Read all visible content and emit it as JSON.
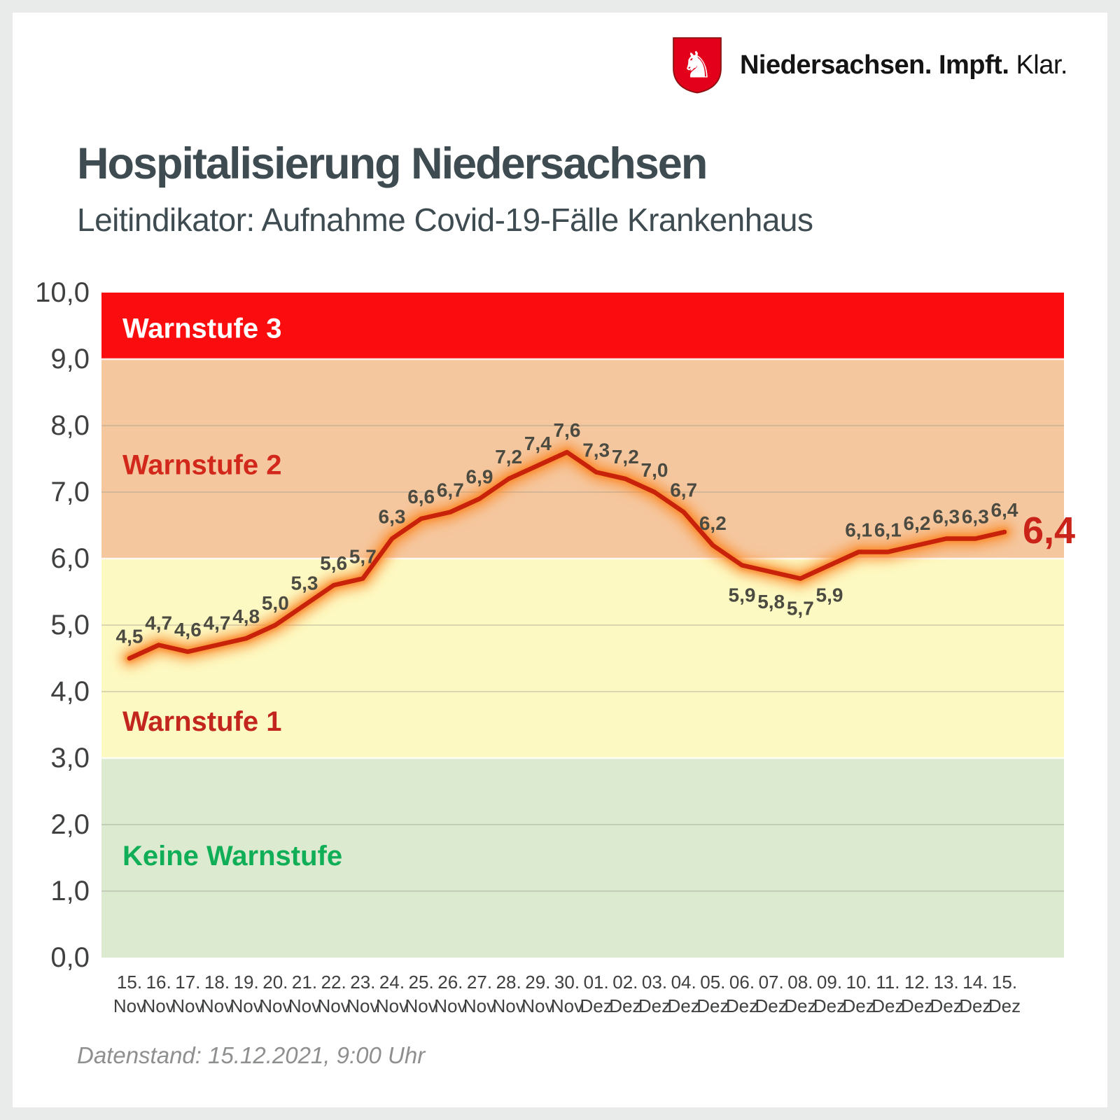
{
  "logo": {
    "icon": "niedersachsen-horse-shield-icon",
    "brand_bold": "Niedersachsen. Impft.",
    "brand_regular": "Klar."
  },
  "header": {
    "title": "Hospitalisierung Niedersachsen",
    "subtitle": "Leitindikator: Aufnahme Covid-19-Fälle Krankenhaus"
  },
  "footer": {
    "datenstand": "Datenstand: 15.12.2021, 9:00 Uhr"
  },
  "chart_data": {
    "type": "line",
    "title": "Hospitalisierung Niedersachsen",
    "subtitle": "Leitindikator: Aufnahme Covid-19-Fälle Krankenhaus",
    "ylim": [
      0,
      10
    ],
    "ytick_labels": [
      "0,0",
      "1,0",
      "2,0",
      "3,0",
      "4,0",
      "5,0",
      "6,0",
      "7,0",
      "8,0",
      "9,0",
      "10,0"
    ],
    "gridline_values": [
      1,
      2,
      4,
      5,
      7,
      8
    ],
    "categories": [
      {
        "day": "15.",
        "month": "Nov"
      },
      {
        "day": "16.",
        "month": "Nov"
      },
      {
        "day": "17.",
        "month": "Nov"
      },
      {
        "day": "18.",
        "month": "Nov"
      },
      {
        "day": "19.",
        "month": "Nov"
      },
      {
        "day": "20.",
        "month": "Nov"
      },
      {
        "day": "21.",
        "month": "Nov"
      },
      {
        "day": "22.",
        "month": "Nov"
      },
      {
        "day": "23.",
        "month": "Nov"
      },
      {
        "day": "24.",
        "month": "Nov"
      },
      {
        "day": "25.",
        "month": "Nov"
      },
      {
        "day": "26.",
        "month": "Nov"
      },
      {
        "day": "27.",
        "month": "Nov"
      },
      {
        "day": "28.",
        "month": "Nov"
      },
      {
        "day": "29.",
        "month": "Nov"
      },
      {
        "day": "30.",
        "month": "Nov"
      },
      {
        "day": "01.",
        "month": "Dez"
      },
      {
        "day": "02.",
        "month": "Dez"
      },
      {
        "day": "03.",
        "month": "Dez"
      },
      {
        "day": "04.",
        "month": "Dez"
      },
      {
        "day": "05.",
        "month": "Dez"
      },
      {
        "day": "06.",
        "month": "Dez"
      },
      {
        "day": "07.",
        "month": "Dez"
      },
      {
        "day": "08.",
        "month": "Dez"
      },
      {
        "day": "09.",
        "month": "Dez"
      },
      {
        "day": "10.",
        "month": "Dez"
      },
      {
        "day": "11.",
        "month": "Dez"
      },
      {
        "day": "12.",
        "month": "Dez"
      },
      {
        "day": "13.",
        "month": "Dez"
      },
      {
        "day": "14.",
        "month": "Dez"
      },
      {
        "day": "15.",
        "month": "Dez"
      }
    ],
    "values": [
      4.5,
      4.7,
      4.6,
      4.7,
      4.8,
      5.0,
      5.3,
      5.6,
      5.7,
      6.3,
      6.6,
      6.7,
      6.9,
      7.2,
      7.4,
      7.6,
      7.3,
      7.2,
      7.0,
      6.7,
      6.2,
      5.9,
      5.8,
      5.7,
      5.9,
      6.1,
      6.1,
      6.2,
      6.3,
      6.3,
      6.4
    ],
    "value_labels": [
      "4,5",
      "4,7",
      "4,6",
      "4,7",
      "4,8",
      "5,0",
      "5,3",
      "5,6",
      "5,7",
      "6,3",
      "6,6",
      "6,7",
      "6,9",
      "7,2",
      "7,4",
      "7,6",
      "7,3",
      "7,2",
      "7,0",
      "6,7",
      "6,2",
      "5,9",
      "5,8",
      "5,7",
      "5,9",
      "6,1",
      "6,1",
      "6,2",
      "6,3",
      "6,3",
      "6,4"
    ],
    "label_below_indices": [
      21,
      22,
      23,
      24
    ],
    "current_value_label": "6,4",
    "line_color": "#c8220a",
    "glow_color": "#fb8f33",
    "value_label_color": "#4c4b41",
    "axis_label_color": "#3f4040",
    "current_value_color": "#c9231a",
    "grid_color": "#98988c",
    "bands": [
      {
        "name": "Warnstufe 3",
        "from": 9,
        "to": 10,
        "color": "#fb0c0e",
        "label_color": "#ffffff",
        "label_v": 9.32
      },
      {
        "name": "Warnstufe 2",
        "from": 6,
        "to": 9,
        "color": "#f5c79f",
        "label_color": "#d2281c",
        "label_v": 7.27
      },
      {
        "name": "Warnstufe 1",
        "from": 3,
        "to": 6,
        "color": "#fdf9c2",
        "label_color": "#c2261d",
        "label_v": 3.41
      },
      {
        "name": "Keine Warnstufe",
        "from": 0,
        "to": 3,
        "color": "#dcead0",
        "label_color": "#0fae57",
        "label_v": 1.39
      }
    ],
    "legend_position": "none",
    "grid": true
  }
}
